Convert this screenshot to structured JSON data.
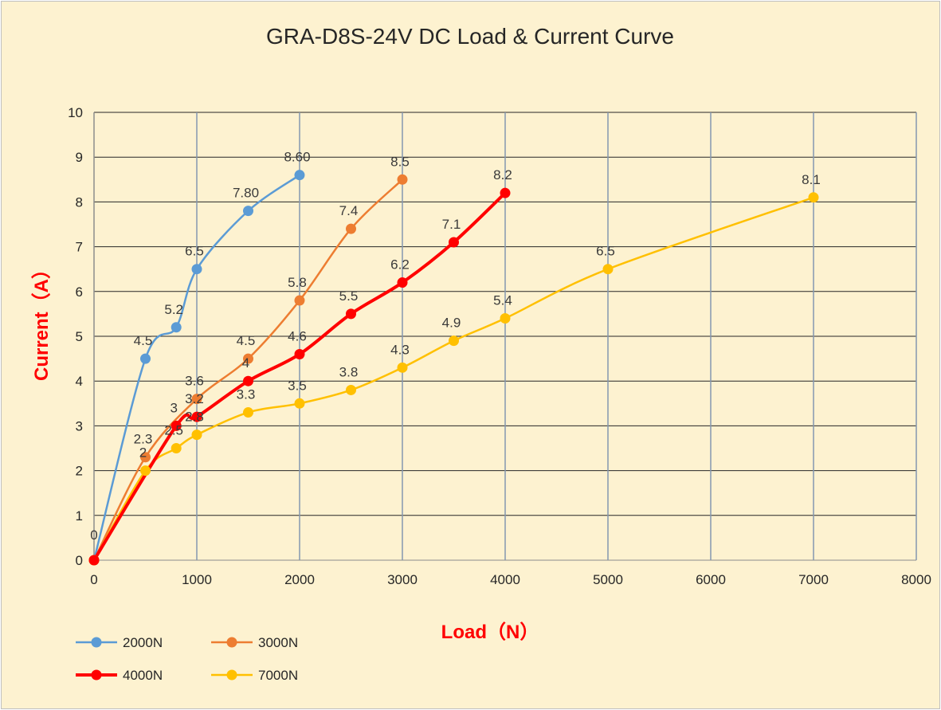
{
  "chart_data": {
    "type": "line",
    "title": "GRA-D8S-24V DC Load & Current Curve",
    "xlabel": "Load（N）",
    "ylabel": "Current（A）",
    "xlim": [
      0,
      8000
    ],
    "ylim": [
      0,
      10
    ],
    "x_ticks": [
      "0",
      "1000",
      "2000",
      "3000",
      "4000",
      "5000",
      "6000",
      "7000",
      "8000"
    ],
    "y_ticks": [
      "0",
      "1",
      "2",
      "3",
      "4",
      "5",
      "6",
      "7",
      "8",
      "9",
      "10"
    ],
    "grid": "both",
    "legend_position": "bottom-left",
    "series": [
      {
        "name": "2000N",
        "color": "#5b9bd5",
        "x": [
          0,
          500,
          800,
          1000,
          1500,
          2000
        ],
        "y": [
          0,
          4.5,
          5.2,
          6.5,
          7.8,
          8.6
        ],
        "labels": [
          "0",
          "4.5",
          "5.2",
          "6.5",
          "7.80",
          "8.60"
        ]
      },
      {
        "name": "3000N",
        "color": "#ed7d31",
        "x": [
          0,
          500,
          1000,
          1500,
          2000,
          2500,
          3000
        ],
        "y": [
          0,
          2.3,
          3.6,
          4.5,
          5.8,
          7.4,
          8.5
        ],
        "labels": [
          "",
          "2.3",
          "3.6",
          "4.5",
          "5.8",
          "7.4",
          "8.5"
        ]
      },
      {
        "name": "4000N",
        "color": "#ff0000",
        "x": [
          0,
          800,
          1000,
          1500,
          2000,
          2500,
          3000,
          3500,
          4000
        ],
        "y": [
          0,
          3,
          3.2,
          4,
          4.6,
          5.5,
          6.2,
          7.1,
          8.2
        ],
        "labels": [
          "",
          "3",
          "3.2",
          "4",
          "4.6",
          "5.5",
          "6.2",
          "7.1",
          "8.2"
        ]
      },
      {
        "name": "7000N",
        "color": "#ffc000",
        "x": [
          0,
          500,
          800,
          1000,
          1500,
          2000,
          2500,
          3000,
          3500,
          4000,
          5000,
          7000
        ],
        "y": [
          0,
          2,
          2.5,
          2.8,
          3.3,
          3.5,
          3.8,
          4.3,
          4.9,
          5.4,
          6.5,
          8.1
        ],
        "labels": [
          "",
          "2",
          "2.5",
          "2.8",
          "3.3",
          "3.5",
          "3.8",
          "4.3",
          "4.9",
          "5.4",
          "6.5",
          "8.1"
        ]
      }
    ]
  }
}
